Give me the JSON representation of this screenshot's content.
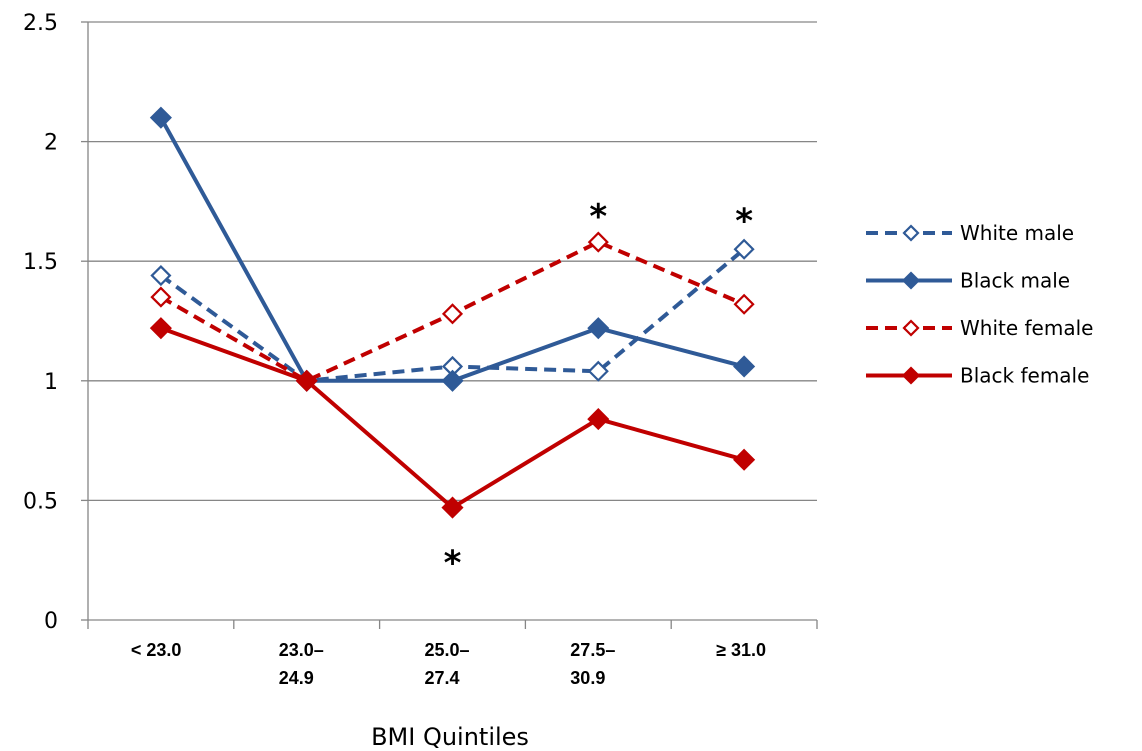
{
  "chart_data": {
    "type": "line",
    "title": "",
    "xlabel": "BMI Quintiles",
    "ylabel": "",
    "categories": [
      [
        "< 23.0"
      ],
      [
        "23.0–",
        "24.9"
      ],
      [
        "25.0–",
        "27.4"
      ],
      [
        "27.5–",
        "30.9"
      ],
      [
        "≥ 31.0"
      ]
    ],
    "ylim": [
      0,
      2.5
    ],
    "yticks": [
      "0",
      "0.5",
      "1",
      "1.5",
      "2",
      "2.5"
    ],
    "ytick_values": [
      0,
      0.5,
      1,
      1.5,
      2,
      2.5
    ],
    "grid": true,
    "legend_position": "right",
    "series": [
      {
        "name": "White male",
        "values": [
          1.44,
          1.0,
          1.06,
          1.04,
          1.55
        ],
        "color": "#2F5A97",
        "dashed": true,
        "filled_marker": false
      },
      {
        "name": "Black male",
        "values": [
          2.1,
          1.0,
          1.0,
          1.22,
          1.06
        ],
        "color": "#2F5A97",
        "dashed": false,
        "filled_marker": true
      },
      {
        "name": "White female",
        "values": [
          1.35,
          1.0,
          1.28,
          1.58,
          1.32
        ],
        "color": "#C00000",
        "dashed": true,
        "filled_marker": false
      },
      {
        "name": "Black female",
        "values": [
          1.22,
          1.0,
          0.47,
          0.84,
          0.67
        ],
        "color": "#C00000",
        "dashed": false,
        "filled_marker": true
      }
    ],
    "annotations": [
      {
        "text": "*",
        "category_index": 2,
        "y": 0.29
      },
      {
        "text": "*",
        "category_index": 3,
        "y": 1.74
      },
      {
        "text": "*",
        "category_index": 4,
        "y": 1.72
      }
    ]
  }
}
